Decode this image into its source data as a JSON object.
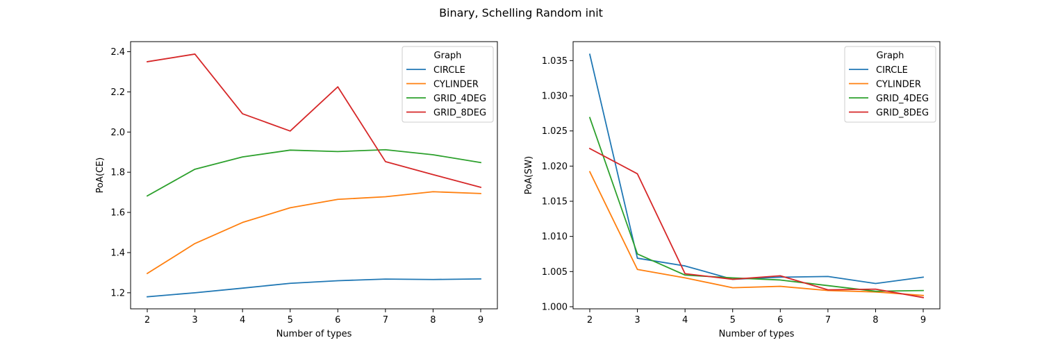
{
  "figure": {
    "title": "Binary, Schelling Random init"
  },
  "chart_data": [
    {
      "type": "line",
      "title": "",
      "xlabel": "Number of types",
      "ylabel": "PoA(CE)",
      "x": [
        2,
        3,
        4,
        5,
        6,
        7,
        8,
        9
      ],
      "xticks": [
        "2",
        "3",
        "4",
        "5",
        "6",
        "7",
        "8",
        "9"
      ],
      "yticks": [
        "1.2",
        "1.4",
        "1.6",
        "1.8",
        "2.0",
        "2.2",
        "2.4"
      ],
      "ytick_values": [
        1.2,
        1.4,
        1.6,
        1.8,
        2.0,
        2.2,
        2.4
      ],
      "xlim": [
        1.65,
        9.35
      ],
      "ylim": [
        1.12,
        2.45
      ],
      "grid": false,
      "legend": {
        "title": "Graph",
        "placement": "top-right"
      },
      "series": [
        {
          "name": "CIRCLE",
          "color": "#1f77b4",
          "values": [
            1.18,
            1.2,
            1.223,
            1.247,
            1.26,
            1.268,
            1.266,
            1.269
          ]
        },
        {
          "name": "CYLINDER",
          "color": "#ff7f0e",
          "values": [
            1.296,
            1.445,
            1.55,
            1.623,
            1.665,
            1.678,
            1.703,
            1.694
          ]
        },
        {
          "name": "GRID_4DEG",
          "color": "#2ca02c",
          "values": [
            1.682,
            1.815,
            1.876,
            1.91,
            1.903,
            1.912,
            1.887,
            1.848
          ]
        },
        {
          "name": "GRID_8DEG",
          "color": "#d62728",
          "values": [
            2.35,
            2.388,
            2.091,
            2.005,
            2.225,
            1.853,
            1.788,
            1.725
          ]
        }
      ]
    },
    {
      "type": "line",
      "title": "",
      "xlabel": "Number of types",
      "ylabel": "PoA(SW)",
      "x": [
        2,
        3,
        4,
        5,
        6,
        7,
        8,
        9
      ],
      "xticks": [
        "2",
        "3",
        "4",
        "5",
        "6",
        "7",
        "8",
        "9"
      ],
      "yticks": [
        "1.000",
        "1.005",
        "1.010",
        "1.015",
        "1.020",
        "1.025",
        "1.030",
        "1.035"
      ],
      "ytick_values": [
        1.0,
        1.005,
        1.01,
        1.015,
        1.02,
        1.025,
        1.03,
        1.035
      ],
      "xlim": [
        1.65,
        9.35
      ],
      "ylim": [
        0.9997,
        1.0377
      ],
      "grid": false,
      "legend": {
        "title": "Graph",
        "placement": "top-right"
      },
      "series": [
        {
          "name": "CIRCLE",
          "color": "#1f77b4",
          "values": [
            1.0359,
            1.0069,
            1.0058,
            1.0039,
            1.0042,
            1.0043,
            1.0033,
            1.0042
          ]
        },
        {
          "name": "CYLINDER",
          "color": "#ff7f0e",
          "values": [
            1.0192,
            1.0053,
            1.0041,
            1.0027,
            1.0029,
            1.0023,
            1.0021,
            1.0016
          ]
        },
        {
          "name": "GRID_4DEG",
          "color": "#2ca02c",
          "values": [
            1.0269,
            1.0075,
            1.0045,
            1.0041,
            1.0038,
            1.003,
            1.0022,
            1.0023
          ]
        },
        {
          "name": "GRID_8DEG",
          "color": "#d62728",
          "values": [
            1.0225,
            1.0189,
            1.0047,
            1.0039,
            1.0044,
            1.0024,
            1.0025,
            1.0013
          ]
        }
      ]
    }
  ]
}
